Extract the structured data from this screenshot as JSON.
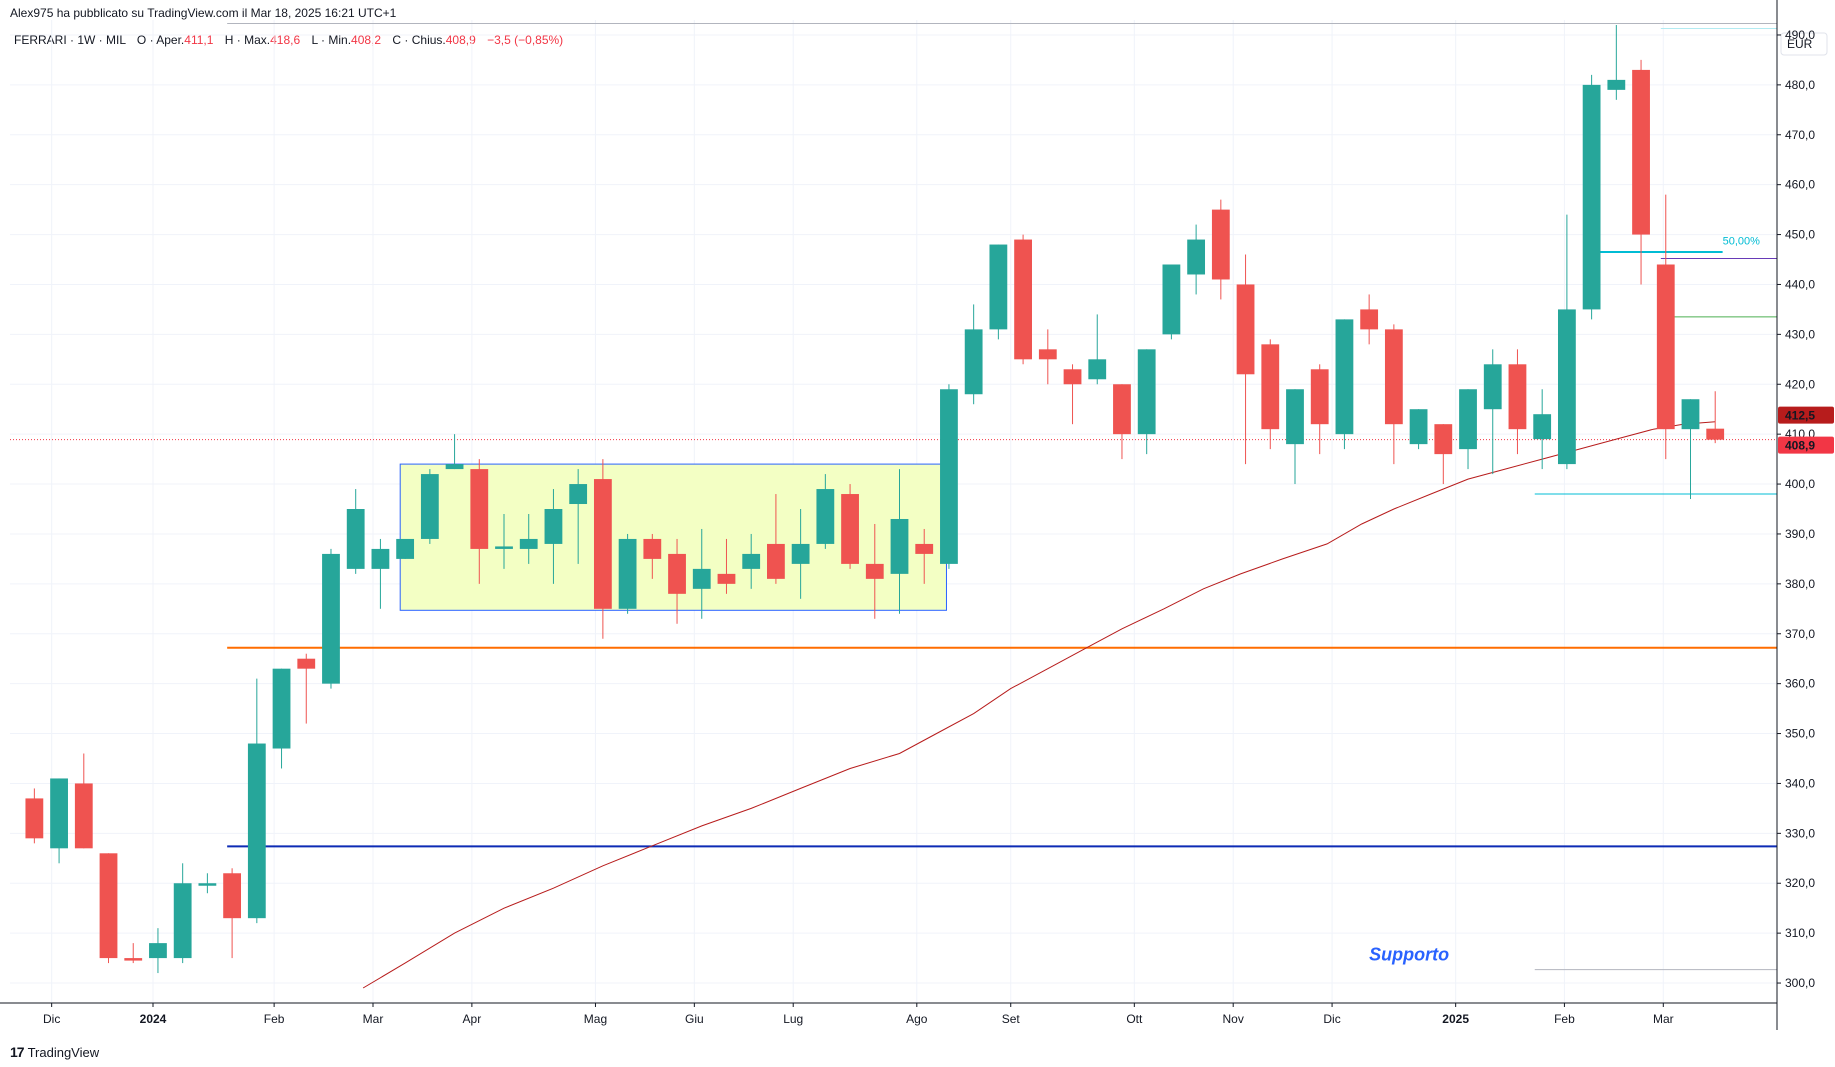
{
  "publisher_line": "Alex975 ha pubblicato su TradingView.com il Mar 18, 2025 16:21 UTC+1",
  "legend": {
    "symbol": "FERRARI · 1W · MIL",
    "open_label": "O · Aper.",
    "open": "411,1",
    "high_label": "H · Max.",
    "high": "418,6",
    "low_label": "L · Min.",
    "low": "408,2",
    "close_label": "C · Chius.",
    "close": "408,9",
    "change": "−3,5 (−0,85%)"
  },
  "brand": "TradingView",
  "colors": {
    "up": "#26a69a",
    "down": "#ef5350",
    "ma": "#b71c1c",
    "grid": "#f0f3fa",
    "orange": "#ff6d00",
    "blue": "#0d2bb5",
    "cyan": "#00bcd4",
    "box_fill": "#f3ffc4",
    "box_stroke": "#2962ff"
  },
  "chart_data": {
    "type": "candlestick",
    "title": "FERRARI · 1W · MIL",
    "currency": "EUR",
    "ylim": [
      296,
      493
    ],
    "yticks": [
      300,
      310,
      320,
      330,
      340,
      350,
      360,
      370,
      380,
      390,
      400,
      410,
      420,
      430,
      440,
      450,
      460,
      470,
      480,
      490
    ],
    "ytick_labels": [
      "300,0",
      "310,0",
      "320,0",
      "330,0",
      "340,0",
      "350,0",
      "360,0",
      "370,0",
      "380,0",
      "390,0",
      "400,0",
      "410,0",
      "420,0",
      "430,0",
      "440,0",
      "450,0",
      "460,0",
      "470,0",
      "480,0",
      "490,0"
    ],
    "x_range": [
      0,
      71
    ],
    "x_labels": [
      {
        "label": "Dic",
        "x": 1.2
      },
      {
        "label": "2024",
        "x": 5.3,
        "bold": true
      },
      {
        "label": "Feb",
        "x": 10.2
      },
      {
        "label": "Mar",
        "x": 14.2
      },
      {
        "label": "Apr",
        "x": 18.2
      },
      {
        "label": "Mag",
        "x": 23.2
      },
      {
        "label": "Giu",
        "x": 27.2
      },
      {
        "label": "Lug",
        "x": 31.2
      },
      {
        "label": "Ago",
        "x": 36.2
      },
      {
        "label": "Set",
        "x": 40.0
      },
      {
        "label": "Ott",
        "x": 45.0
      },
      {
        "label": "Nov",
        "x": 49.0
      },
      {
        "label": "Dic",
        "x": 53.0
      },
      {
        "label": "2025",
        "x": 58.0,
        "bold": true
      },
      {
        "label": "Feb",
        "x": 62.4
      },
      {
        "label": "Mar",
        "x": 66.4
      }
    ],
    "candles": [
      {
        "o": 337,
        "h": 339,
        "c": 329,
        "l": 328
      },
      {
        "o": 327,
        "h": 341,
        "c": 341,
        "l": 324
      },
      {
        "o": 340,
        "h": 346,
        "c": 327,
        "l": 327
      },
      {
        "o": 326,
        "h": 326,
        "c": 305,
        "l": 304
      },
      {
        "o": 305,
        "h": 308,
        "c": 304.5,
        "l": 304
      },
      {
        "o": 305,
        "h": 311,
        "c": 308,
        "l": 302
      },
      {
        "o": 305,
        "h": 324,
        "c": 320,
        "l": 304
      },
      {
        "o": 319.5,
        "h": 322,
        "c": 320,
        "l": 318
      },
      {
        "o": 322,
        "h": 323,
        "c": 313,
        "l": 305
      },
      {
        "o": 313,
        "h": 361,
        "c": 348,
        "l": 312
      },
      {
        "o": 347,
        "h": 363,
        "c": 363,
        "l": 343
      },
      {
        "o": 365,
        "h": 366,
        "c": 363,
        "l": 352
      },
      {
        "o": 360,
        "h": 387,
        "c": 386,
        "l": 359
      },
      {
        "o": 383,
        "h": 399,
        "c": 395,
        "l": 382
      },
      {
        "o": 383,
        "h": 389,
        "c": 387,
        "l": 375
      },
      {
        "o": 385,
        "h": 388,
        "c": 389,
        "l": 385
      },
      {
        "o": 389,
        "h": 403,
        "c": 402,
        "l": 388
      },
      {
        "o": 403,
        "h": 410,
        "c": 404,
        "l": 403
      },
      {
        "o": 403,
        "h": 405,
        "c": 387,
        "l": 380
      },
      {
        "o": 387,
        "h": 394,
        "c": 387.5,
        "l": 383
      },
      {
        "o": 387,
        "h": 394,
        "c": 389,
        "l": 384
      },
      {
        "o": 388,
        "h": 399,
        "c": 395,
        "l": 380
      },
      {
        "o": 396,
        "h": 403,
        "c": 400,
        "l": 384
      },
      {
        "o": 401,
        "h": 405,
        "c": 375,
        "l": 369
      },
      {
        "o": 375,
        "h": 390,
        "c": 389,
        "l": 374
      },
      {
        "o": 389,
        "h": 390,
        "c": 385,
        "l": 381
      },
      {
        "o": 386,
        "h": 389,
        "c": 378,
        "l": 372
      },
      {
        "o": 379,
        "h": 391,
        "c": 383,
        "l": 373
      },
      {
        "o": 382,
        "h": 389,
        "c": 380,
        "l": 378
      },
      {
        "o": 383,
        "h": 390,
        "c": 386,
        "l": 379
      },
      {
        "o": 388,
        "h": 398,
        "c": 381,
        "l": 380
      },
      {
        "o": 384,
        "h": 395,
        "c": 388,
        "l": 377
      },
      {
        "o": 388,
        "h": 402,
        "c": 399,
        "l": 387
      },
      {
        "o": 398,
        "h": 400,
        "c": 384,
        "l": 383
      },
      {
        "o": 384,
        "h": 392,
        "c": 381,
        "l": 373
      },
      {
        "o": 382,
        "h": 403,
        "c": 393,
        "l": 374
      },
      {
        "o": 388,
        "h": 391,
        "c": 386,
        "l": 380
      },
      {
        "o": 384,
        "h": 420,
        "c": 419,
        "l": 383
      },
      {
        "o": 418,
        "h": 436,
        "c": 431,
        "l": 416
      },
      {
        "o": 431,
        "h": 448,
        "c": 448,
        "l": 429
      },
      {
        "o": 449,
        "h": 450,
        "c": 425,
        "l": 424
      },
      {
        "o": 427,
        "h": 431,
        "c": 425,
        "l": 420
      },
      {
        "o": 423,
        "h": 424,
        "c": 420,
        "l": 412
      },
      {
        "o": 421,
        "h": 434,
        "c": 425,
        "l": 420
      },
      {
        "o": 420,
        "h": 420,
        "c": 410,
        "l": 405
      },
      {
        "o": 410,
        "h": 427,
        "c": 427,
        "l": 406
      },
      {
        "o": 430,
        "h": 444,
        "c": 444,
        "l": 429
      },
      {
        "o": 442,
        "h": 452,
        "c": 449,
        "l": 438
      },
      {
        "o": 455,
        "h": 457,
        "c": 441,
        "l": 437
      },
      {
        "o": 440,
        "h": 446,
        "c": 422,
        "l": 404
      },
      {
        "o": 428,
        "h": 429,
        "c": 411,
        "l": 407
      },
      {
        "o": 408,
        "h": 419,
        "c": 419,
        "l": 400
      },
      {
        "o": 423,
        "h": 424,
        "c": 412,
        "l": 406
      },
      {
        "o": 410,
        "h": 433,
        "c": 433,
        "l": 407
      },
      {
        "o": 435,
        "h": 438,
        "c": 431,
        "l": 428
      },
      {
        "o": 431,
        "h": 432,
        "c": 412,
        "l": 404
      },
      {
        "o": 408,
        "h": 415,
        "c": 415,
        "l": 407
      },
      {
        "o": 412,
        "h": 412,
        "c": 406,
        "l": 400
      },
      {
        "o": 407,
        "h": 419,
        "c": 419,
        "l": 403
      },
      {
        "o": 415,
        "h": 427,
        "c": 424,
        "l": 402
      },
      {
        "o": 424,
        "h": 427,
        "c": 411,
        "l": 406
      },
      {
        "o": 409,
        "h": 419,
        "c": 414,
        "l": 403
      },
      {
        "o": 404,
        "h": 454,
        "c": 435,
        "l": 403
      },
      {
        "o": 435,
        "h": 482,
        "c": 480,
        "l": 433
      },
      {
        "o": 479,
        "h": 492,
        "c": 481,
        "l": 477
      },
      {
        "o": 483,
        "h": 485,
        "c": 450,
        "l": 440
      },
      {
        "o": 444,
        "h": 458,
        "c": 411,
        "l": 405
      },
      {
        "o": 411,
        "h": 417,
        "c": 417,
        "l": 397
      },
      {
        "o": 411.1,
        "h": 418.6,
        "c": 408.9,
        "l": 408.2
      }
    ],
    "moving_average": [
      [
        13.8,
        299
      ],
      [
        15.5,
        304
      ],
      [
        17.5,
        310
      ],
      [
        19.5,
        315
      ],
      [
        21.5,
        319
      ],
      [
        23.5,
        323.5
      ],
      [
        25.5,
        327.5
      ],
      [
        27.5,
        331.5
      ],
      [
        29.5,
        335
      ],
      [
        31.5,
        339
      ],
      [
        33.5,
        343
      ],
      [
        35.5,
        346
      ],
      [
        37,
        350
      ],
      [
        38.5,
        354
      ],
      [
        40,
        359
      ],
      [
        41.5,
        363
      ],
      [
        43,
        367
      ],
      [
        44.5,
        371
      ],
      [
        46.2,
        375
      ],
      [
        47.8,
        379
      ],
      [
        49.3,
        382
      ],
      [
        51,
        385
      ],
      [
        52.8,
        388
      ],
      [
        54.2,
        392
      ],
      [
        55.5,
        395
      ],
      [
        57,
        398
      ],
      [
        58.5,
        401
      ],
      [
        60,
        403
      ],
      [
        61.5,
        405
      ],
      [
        63,
        407
      ],
      [
        64.5,
        409
      ],
      [
        66,
        411
      ],
      [
        67.2,
        412
      ],
      [
        68.5,
        412.5
      ]
    ],
    "horizontal_lines": [
      {
        "name": "top-gray",
        "y": 492.3,
        "x_from": 8.3,
        "x_to": 71,
        "color": "#b2b5be"
      },
      {
        "name": "orange-level",
        "y": 367.2,
        "x_from": 8.3,
        "x_to": 71,
        "color": "#ff6d00"
      },
      {
        "name": "blue-level",
        "y": 327.4,
        "x_from": 8.3,
        "x_to": 71,
        "color": "#0d2bb5"
      },
      {
        "name": "fib-top-thin",
        "y": 491.3,
        "x_from": 66.3,
        "x_to": 71,
        "color": "#b2ebf2"
      },
      {
        "name": "fib-50",
        "y": 446.5,
        "x_from": 63.6,
        "x_to": 68.8,
        "color": "#00bcd4"
      },
      {
        "name": "fib-purple",
        "y": 445.2,
        "x_from": 66.3,
        "x_to": 71,
        "color": "#673ab7"
      },
      {
        "name": "fib-green",
        "y": 433.5,
        "x_from": 66.3,
        "x_to": 71,
        "color": "#4caf50"
      },
      {
        "name": "fib-bottom",
        "y": 398,
        "x_from": 61.2,
        "x_to": 71,
        "color": "#00bcd4"
      },
      {
        "name": "fib-low-gray",
        "y": 302.7,
        "x_from": 61.2,
        "x_to": 71,
        "color": "#b2b5be"
      },
      {
        "name": "current-price",
        "y": 408.9,
        "x_from": 0,
        "x_to": 71,
        "color": "#f23645",
        "dotted": true
      }
    ],
    "range_box": {
      "x_from": 15.3,
      "x_to": 37.4,
      "y_top": 404,
      "y_bottom": 374.7
    },
    "annotations": [
      {
        "text": "50,00%",
        "x": 68.8,
        "y": 448,
        "color": "#00bcd4"
      },
      {
        "text": "Supporto",
        "x": 54.5,
        "y": 304.5,
        "color": "#2962ff"
      }
    ],
    "price_tags": [
      {
        "text": "412,5",
        "value": 412.5,
        "color": "#b71c1c"
      },
      {
        "text": "408,9",
        "value": 408.9,
        "color": "#f23645"
      }
    ]
  }
}
